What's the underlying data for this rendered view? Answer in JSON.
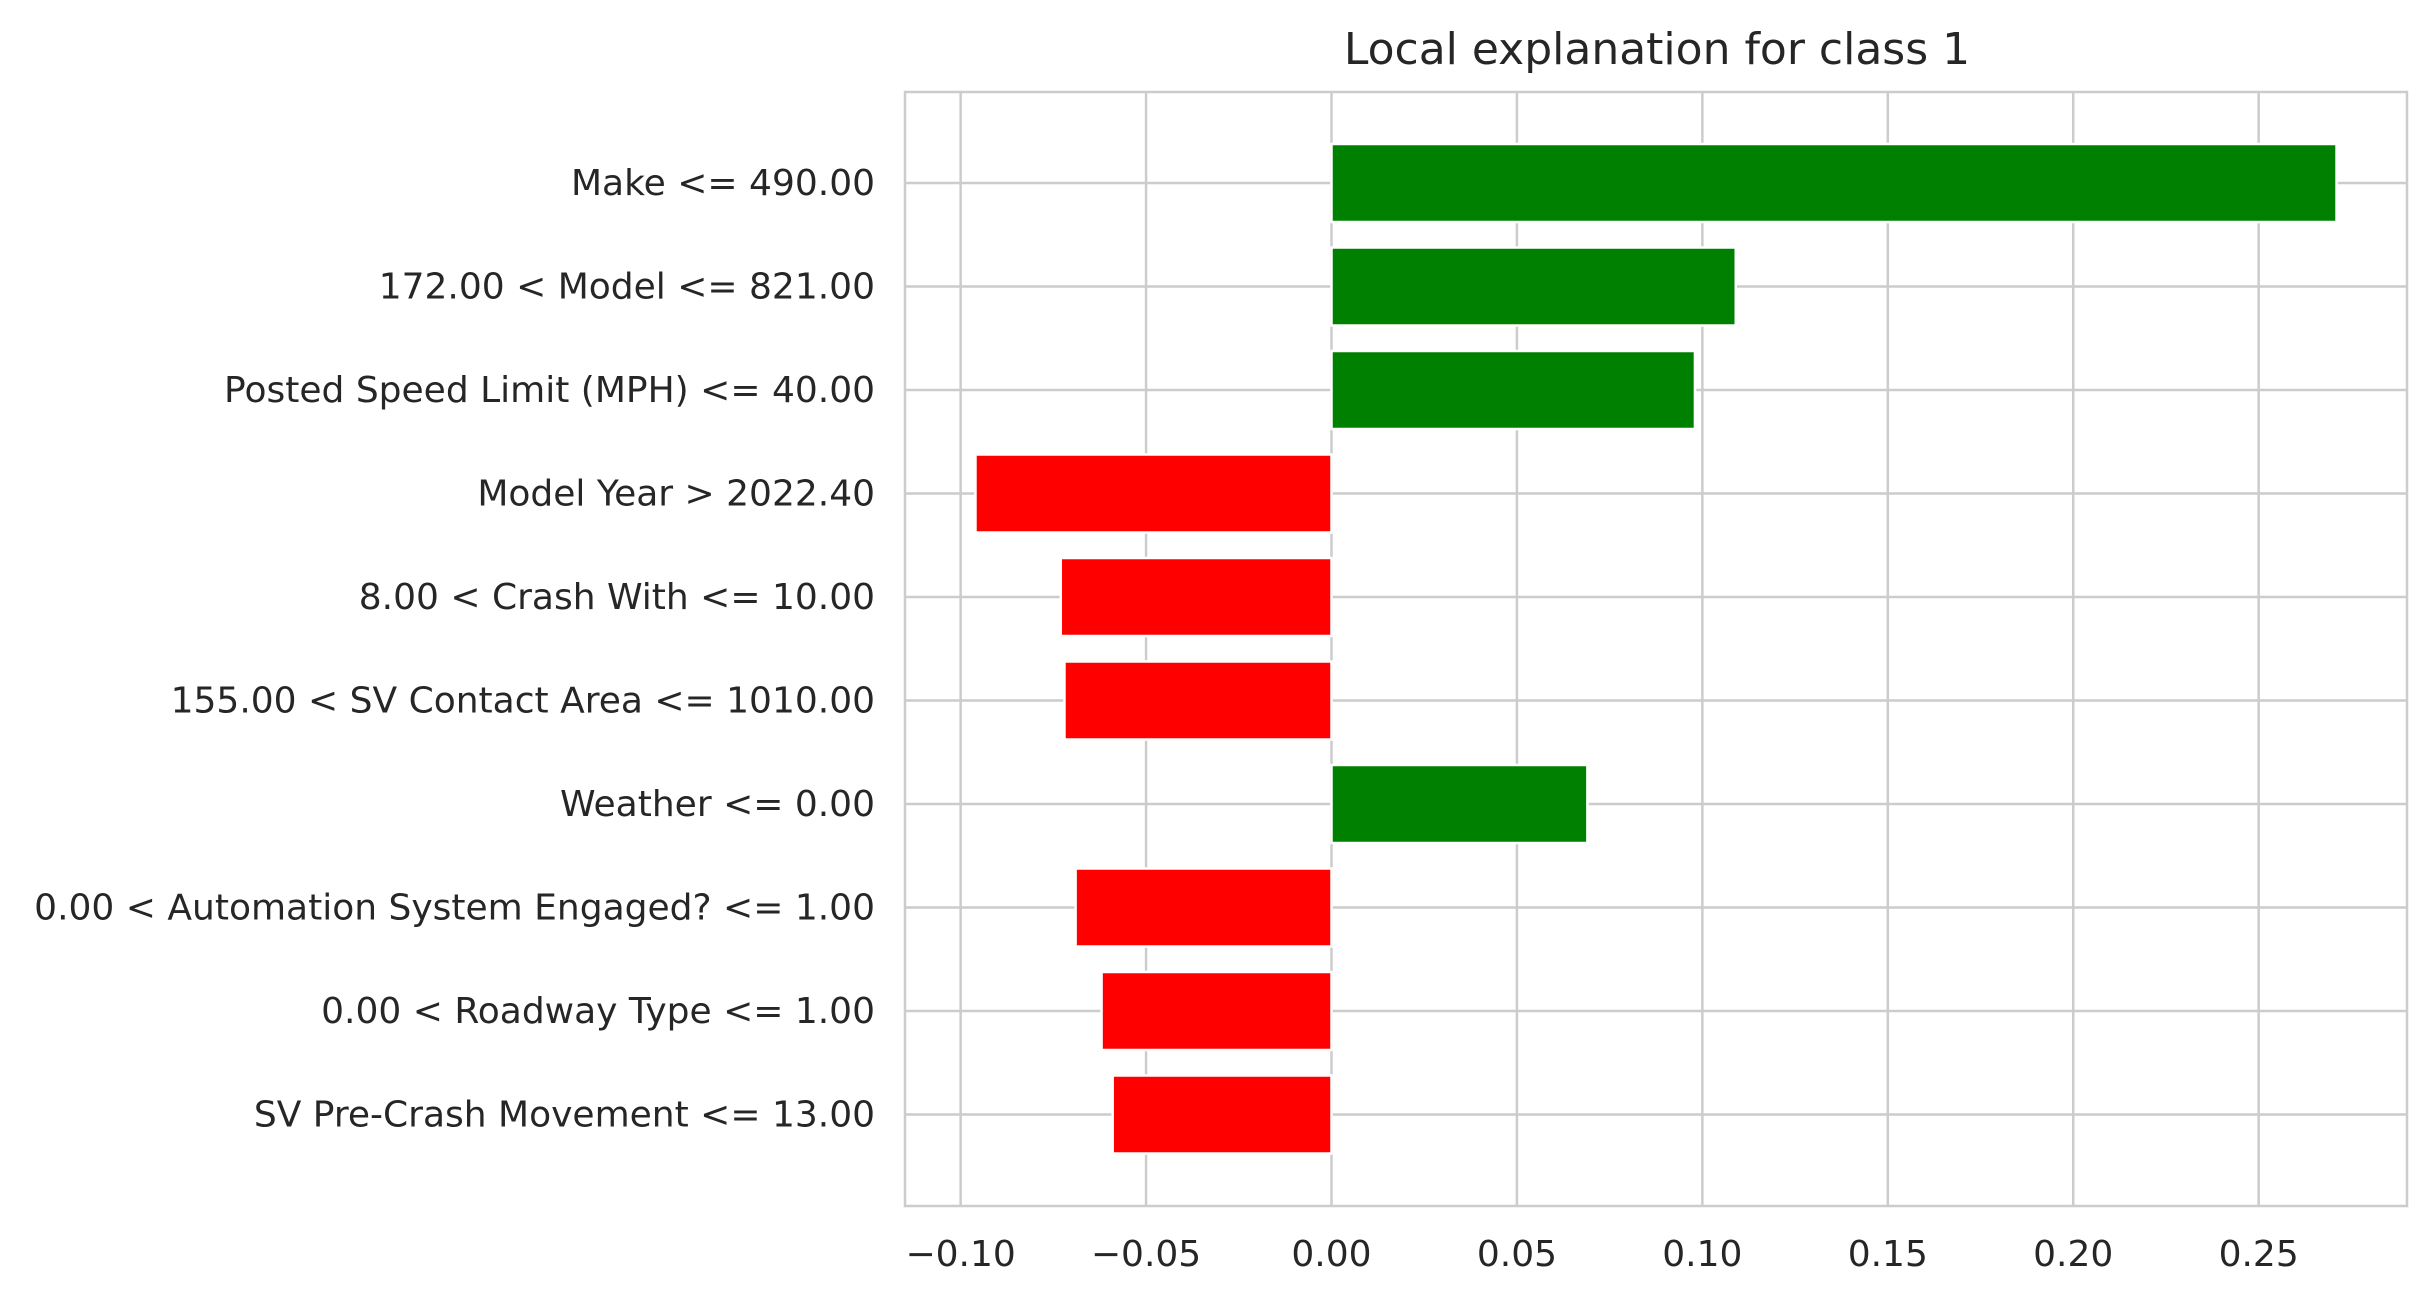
{
  "chart_data": {
    "type": "bar",
    "orientation": "horizontal",
    "title": "Local explanation for class 1",
    "xlabel": "",
    "ylabel": "",
    "xlim": [
      -0.115,
      0.29
    ],
    "xticks": [
      -0.1,
      -0.05,
      0.0,
      0.05,
      0.1,
      0.15,
      0.2,
      0.25
    ],
    "xtick_labels": [
      "−0.10",
      "−0.05",
      "0.00",
      "0.05",
      "0.10",
      "0.15",
      "0.20",
      "0.25"
    ],
    "grid": true,
    "categories": [
      "Make <= 490.00",
      "172.00 < Model <= 821.00",
      "Posted Speed Limit (MPH) <= 40.00",
      "Model Year > 2022.40",
      "8.00 < Crash With <= 10.00",
      "155.00 < SV Contact Area <= 1010.00",
      "Weather <= 0.00",
      "0.00 < Automation System Engaged? <= 1.00",
      "0.00 < Roadway Type <= 1.00",
      "SV Pre-Crash Movement <= 13.00"
    ],
    "values": [
      0.271,
      0.109,
      0.098,
      -0.096,
      -0.073,
      -0.072,
      0.069,
      -0.069,
      -0.062,
      -0.059
    ],
    "colors": {
      "positive": "#008000",
      "negative": "#ff0000",
      "grid": "#cccccc",
      "text": "#262626"
    }
  }
}
